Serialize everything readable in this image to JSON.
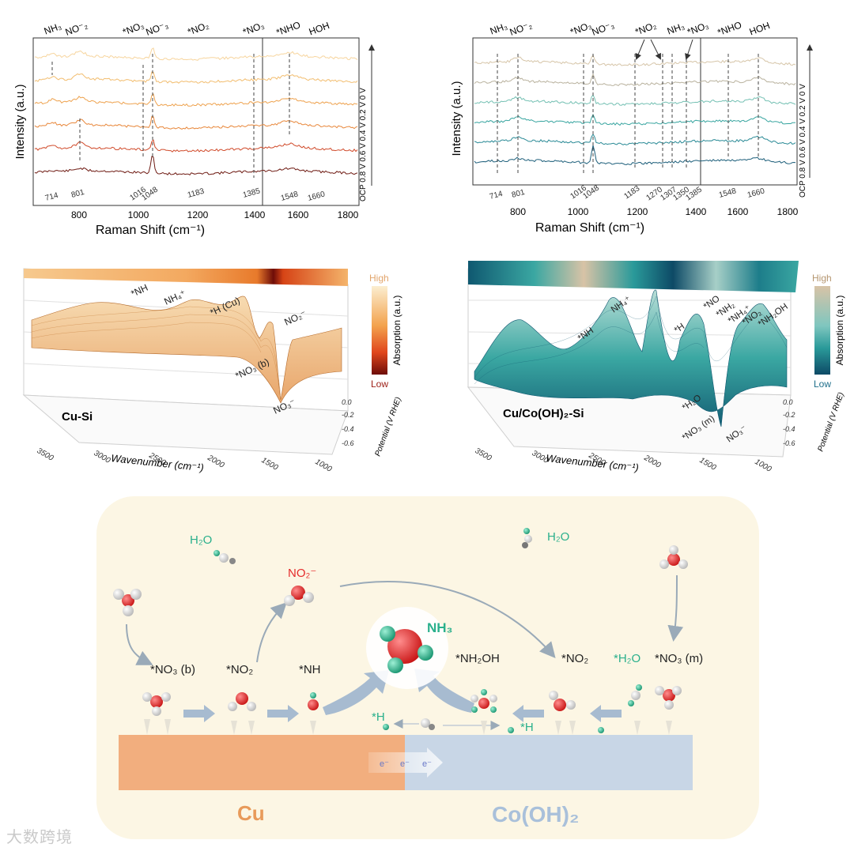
{
  "raman_left": {
    "ylabel": "Intensity (a.u.)",
    "xlabel": "Raman Shift (cm⁻¹)",
    "x_ticks_a": [
      "800",
      "1000",
      "1200",
      "1400"
    ],
    "x_ticks_b": [
      "1600",
      "1800"
    ],
    "top_labels": [
      "NH₃",
      "NO⁻₂",
      "*NO₃",
      "NO⁻₃",
      "*NO₂",
      "*NO₃",
      "*NHO",
      "HOH"
    ],
    "peaks": [
      "714",
      "801",
      "1016",
      "1048",
      "1183",
      "1385",
      "1548",
      "1660"
    ],
    "potential_label": "OCP 0.8 V 0.6 V 0.4 V 0.2 V 0 V"
  },
  "raman_right": {
    "ylabel": "Intensity (a.u.)",
    "xlabel": "Raman Shift (cm⁻¹)",
    "x_ticks_a": [
      "800",
      "1000",
      "1200",
      "1400"
    ],
    "x_ticks_b": [
      "1600",
      "1800"
    ],
    "top_labels": [
      "NH₃",
      "NO⁻₂",
      "*NO₃",
      "NO⁻₃",
      "*NO₂",
      "NH₃",
      "*NO₃",
      "*NHO",
      "HOH"
    ],
    "peaks": [
      "714",
      "801",
      "1016",
      "1048",
      "1183",
      "1270",
      "1307",
      "1350",
      "1385",
      "1548",
      "1660"
    ],
    "potential_label": "OCP 0.8 V 0.6 V 0.4 V 0.2 V 0 V"
  },
  "ir_left": {
    "sample": "Cu-Si",
    "x_axis_title": "Wavenumber (cm⁻¹)",
    "x_ticks": [
      "3500",
      "3000",
      "2500",
      "2000",
      "1500",
      "1000"
    ],
    "z_ticks": [
      "0.0",
      "-0.2",
      "-0.4",
      "-0.6"
    ],
    "z_title": "Potential (V RHE)",
    "annotations": [
      "*NH",
      "NH₄⁺",
      "*H (Cu)",
      "NO₂⁻",
      "*NO₃ (b)",
      "NO₃⁻"
    ],
    "colorbar_title": "Absorption (a.u.)",
    "colorbar_high": "High",
    "colorbar_low": "Low",
    "colors": {
      "high": "#fbeed0",
      "mid": "#f3a24d",
      "low": "#6e0d08"
    }
  },
  "ir_right": {
    "sample": "Cu/Co(OH)₂-Si",
    "x_axis_title": "Wavenumber (cm⁻¹)",
    "x_ticks": [
      "3500",
      "3000",
      "2500",
      "2000",
      "1500",
      "1000"
    ],
    "z_ticks": [
      "0.0",
      "-0.2",
      "-0.4",
      "-0.6"
    ],
    "z_title": "Potential (V RHE)",
    "annotations": [
      "NH₄⁺",
      "*NH",
      "*H",
      "*NO",
      "*NH₂",
      "*NH₄⁺",
      "*NO₂",
      "*NH₂OH",
      "*H₂O",
      "*NO₃ (m)",
      "NO₃⁻"
    ],
    "colorbar_title": "Absorption (a.u.)",
    "colorbar_high": "High",
    "colorbar_low": "Low",
    "colors": {
      "high": "#d8c3a6",
      "mid": "#3aa7a2",
      "low": "#0d4a66"
    }
  },
  "scheme": {
    "h2o_left": "H₂O",
    "h2o_right": "H₂O",
    "no2_free": "NO₂⁻",
    "nh3": "NH₃",
    "no3_b": "*NO₃ (b)",
    "no2_ads": "*NO₂",
    "nh": "*NH",
    "nh2oh": "*NH₂OH",
    "no2_right": "*NO₂",
    "h2o_ads": "*H₂O",
    "no3_m": "*NO₃ (m)",
    "h_left": "*H",
    "h_right": "*H",
    "electron": "e⁻",
    "cu": "Cu",
    "coo": "Co(OH)₂",
    "colors": {
      "cu": "#f2ae7e",
      "co": "#c8d6e6",
      "bg": "#fcf6e4",
      "n": "#e52b2b",
      "h": "#2ab08c"
    }
  },
  "watermark": "大数跨境"
}
